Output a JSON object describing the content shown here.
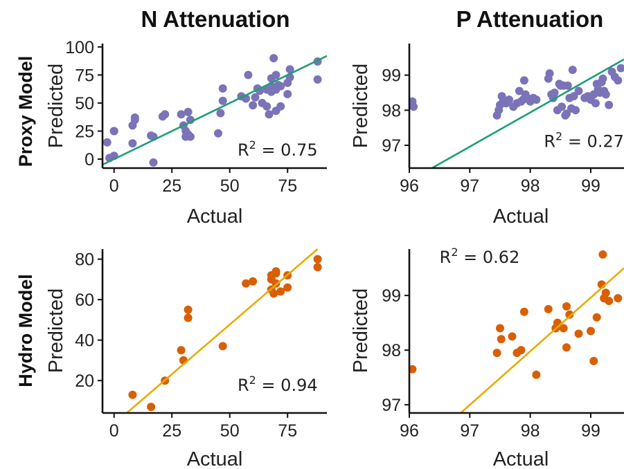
{
  "column_titles": [
    "N Attenuation",
    "P Attenuation"
  ],
  "row_labels": [
    "Proxy Model",
    "Hydro Model"
  ],
  "chart_data": [
    {
      "type": "scatter",
      "title": "N Attenuation",
      "row": "Proxy Model",
      "xlabel": "Actual",
      "ylabel": "Predicted",
      "xlim": [
        -5,
        92
      ],
      "ylim": [
        -8,
        103
      ],
      "xticks": [
        0,
        25,
        50,
        75
      ],
      "xtick_labels": [
        "0",
        "25",
        "50",
        "75"
      ],
      "yticks": [
        0,
        25,
        50,
        75,
        100
      ],
      "ytick_labels": [
        "0",
        "25",
        "50",
        "75",
        "100"
      ],
      "point_color": "#7a73b8",
      "line_color": "#1b9e77",
      "fit_line": {
        "x": [
          -5,
          92
        ],
        "y": [
          -5,
          92
        ]
      },
      "annotation": {
        "prefix": "R",
        "sup": "2",
        "text": " = 0.75"
      },
      "annotation_anchor": [
        88,
        3
      ],
      "annotation_align": "end",
      "x": [
        -3,
        -2,
        0,
        0,
        0,
        8,
        8,
        9,
        9,
        16,
        17,
        17,
        21,
        22,
        29,
        30,
        31,
        31,
        32,
        32,
        33,
        33,
        45,
        46,
        47,
        47,
        55,
        57,
        58,
        60,
        61,
        62,
        63,
        64,
        66,
        66,
        67,
        68,
        68,
        68,
        69,
        70,
        70,
        70,
        71,
        72,
        72,
        75,
        75,
        76,
        76,
        88,
        88
      ],
      "y": [
        15,
        1,
        3,
        25,
        25,
        14,
        30,
        35,
        37,
        21,
        -3,
        20,
        38,
        40,
        40,
        30,
        25,
        20,
        42,
        22,
        35,
        20,
        23,
        41,
        52,
        63,
        56,
        54,
        75,
        48,
        55,
        63,
        61,
        50,
        47,
        62,
        40,
        60,
        65,
        72,
        90,
        43,
        62,
        75,
        66,
        65,
        47,
        58,
        68,
        73,
        80,
        87,
        71
      ]
    },
    {
      "type": "scatter",
      "title": "P Attenuation",
      "row": "Proxy Model",
      "xlabel": "Actual",
      "ylabel": "Predicted",
      "xlim": [
        96,
        99.55
      ],
      "ylim": [
        96.35,
        99.9
      ],
      "xticks": [
        96,
        97,
        98,
        99
      ],
      "xtick_labels": [
        "96",
        "97",
        "98",
        "99"
      ],
      "yticks": [
        97,
        98,
        99
      ],
      "ytick_labels": [
        "97",
        "98",
        "99"
      ],
      "point_color": "#7a73b8",
      "line_color": "#1b9e77",
      "fit_line": {
        "x": [
          96.375,
          99.55
        ],
        "y": [
          96.35,
          99.45
        ]
      },
      "annotation": {
        "prefix": "R",
        "sup": "2",
        "text": " = 0.27"
      },
      "annotation_anchor": [
        99.55,
        96.95
      ],
      "annotation_align": "end",
      "x": [
        96.05,
        96.07,
        97.45,
        97.48,
        97.5,
        97.53,
        97.55,
        97.6,
        97.65,
        97.72,
        97.78,
        97.82,
        97.85,
        97.88,
        97.9,
        97.92,
        97.95,
        98.0,
        98.05,
        98.1,
        98.3,
        98.32,
        98.35,
        98.38,
        98.4,
        98.45,
        98.48,
        98.5,
        98.52,
        98.55,
        98.58,
        98.6,
        98.62,
        98.65,
        98.68,
        98.7,
        98.72,
        98.75,
        98.8,
        98.9,
        98.95,
        99.0,
        99.05,
        99.08,
        99.1,
        99.12,
        99.15,
        99.18,
        99.2,
        99.22,
        99.25,
        99.3,
        99.35,
        99.4,
        99.45,
        99.5
      ],
      "y": [
        98.25,
        98.1,
        97.85,
        98.0,
        98.15,
        98.4,
        98.25,
        98.2,
        98.3,
        98.1,
        98.2,
        98.55,
        98.25,
        98.3,
        98.85,
        98.45,
        98.35,
        98.25,
        98.35,
        98.3,
        98.9,
        99.05,
        98.45,
        98.35,
        98.5,
        98.0,
        98.75,
        98.7,
        98.1,
        98.7,
        97.85,
        97.9,
        98.7,
        98.35,
        98.05,
        99.15,
        98.4,
        98.0,
        98.55,
        98.35,
        98.4,
        98.3,
        98.45,
        98.2,
        98.75,
        98.6,
        98.5,
        98.8,
        98.9,
        98.55,
        98.45,
        98.15,
        99.1,
        98.95,
        98.85,
        99.2
      ]
    },
    {
      "type": "scatter",
      "title": "N Attenuation",
      "row": "Hydro Model",
      "xlabel": "Actual",
      "ylabel": "Predicted",
      "xlim": [
        -5,
        92
      ],
      "ylim": [
        4,
        85
      ],
      "xticks": [
        0,
        25,
        50,
        75
      ],
      "xtick_labels": [
        "0",
        "25",
        "50",
        "75"
      ],
      "yticks": [
        20,
        40,
        60,
        80
      ],
      "ytick_labels": [
        "20",
        "40",
        "60",
        "80"
      ],
      "point_color": "#d95f02",
      "line_color": "#e6ab02",
      "fit_line": {
        "x": [
          5.5,
          88
        ],
        "y": [
          4,
          85
        ]
      },
      "annotation": {
        "prefix": "R",
        "sup": "2",
        "text": " = 0.94"
      },
      "annotation_anchor": [
        88,
        15
      ],
      "annotation_align": "end",
      "x": [
        8,
        16,
        22,
        29,
        30,
        32,
        32,
        47,
        57,
        60,
        68,
        68,
        68,
        69,
        70,
        70,
        70,
        72,
        75,
        75,
        88,
        88
      ],
      "y": [
        13,
        7,
        20,
        35,
        30,
        55,
        51,
        37,
        68,
        69,
        72,
        70,
        65,
        63,
        74,
        73,
        68,
        64,
        72,
        66,
        80,
        76
      ]
    },
    {
      "type": "scatter",
      "title": "P Attenuation",
      "row": "Hydro Model",
      "xlabel": "Actual",
      "ylabel": "Predicted",
      "xlim": [
        96,
        99.55
      ],
      "ylim": [
        96.85,
        99.85
      ],
      "xticks": [
        96,
        97,
        98,
        99
      ],
      "xtick_labels": [
        "96",
        "97",
        "98",
        "99"
      ],
      "yticks": [
        97,
        98,
        99
      ],
      "ytick_labels": [
        "97",
        "98",
        "99"
      ],
      "point_color": "#d95f02",
      "line_color": "#e6ab02",
      "fit_line": {
        "x": [
          96.85,
          99.55
        ],
        "y": [
          96.85,
          99.5
        ]
      },
      "annotation": {
        "prefix": "R",
        "sup": "2",
        "text": " = 0.62"
      },
      "annotation_anchor": [
        96.5,
        99.6
      ],
      "annotation_align": "start",
      "x": [
        96.05,
        97.45,
        97.5,
        97.52,
        97.7,
        97.78,
        97.85,
        97.9,
        98.1,
        98.3,
        98.42,
        98.45,
        98.55,
        98.6,
        98.6,
        98.65,
        98.8,
        99.0,
        99.05,
        99.1,
        99.18,
        99.2,
        99.22,
        99.25,
        99.3,
        99.45
      ],
      "y": [
        97.65,
        97.95,
        98.4,
        98.2,
        98.25,
        97.95,
        98.0,
        98.7,
        97.55,
        98.75,
        98.4,
        98.5,
        98.4,
        98.8,
        98.05,
        98.65,
        98.3,
        98.35,
        97.8,
        98.6,
        99.2,
        99.75,
        98.95,
        99.05,
        98.9,
        98.95
      ]
    }
  ]
}
